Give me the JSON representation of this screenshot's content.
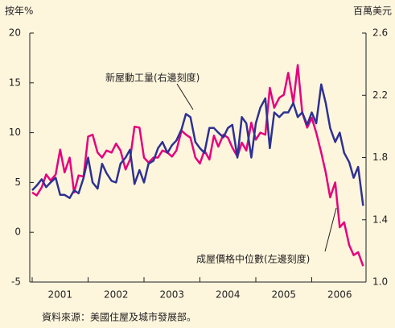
{
  "chart_data": {
    "type": "line",
    "y_axis_label": "按年%",
    "y2_axis_label": "百萬美元",
    "source": "資料來源：美國住屋及城市發展部。",
    "xlim": [
      2001,
      2007
    ],
    "xticks": [
      2001,
      2002,
      2003,
      2004,
      2005,
      2006,
      2007
    ],
    "x_year_labels": [
      {
        "value": 2001.5,
        "label": "2001"
      },
      {
        "value": 2002.5,
        "label": "2002"
      },
      {
        "value": 2003.5,
        "label": "2003"
      },
      {
        "value": 2004.5,
        "label": "2004"
      },
      {
        "value": 2005.5,
        "label": "2005"
      },
      {
        "value": 2006.5,
        "label": "2006"
      }
    ],
    "ylim": [
      -5,
      20
    ],
    "yticks": [
      -5,
      0,
      5,
      10,
      15,
      20
    ],
    "y2lim": [
      1.0,
      2.6
    ],
    "y2ticks": [
      {
        "value": 1.0,
        "label": "1.0"
      },
      1.4,
      1.8,
      2.2,
      2.6
    ],
    "x": [
      2001,
      2001.08,
      2001.17,
      2001.25,
      2001.33,
      2001.42,
      2001.5,
      2001.58,
      2001.67,
      2001.75,
      2001.83,
      2001.92,
      2002,
      2002.08,
      2002.17,
      2002.25,
      2002.33,
      2002.42,
      2002.5,
      2002.58,
      2002.67,
      2002.75,
      2002.83,
      2002.92,
      2003,
      2003.08,
      2003.17,
      2003.25,
      2003.33,
      2003.42,
      2003.5,
      2003.58,
      2003.67,
      2003.75,
      2003.83,
      2003.92,
      2004,
      2004.08,
      2004.17,
      2004.25,
      2004.33,
      2004.42,
      2004.5,
      2004.58,
      2004.67,
      2004.75,
      2004.83,
      2004.92,
      2005,
      2005.08,
      2005.17,
      2005.25,
      2005.33,
      2005.42,
      2005.5,
      2005.58,
      2005.67,
      2005.75,
      2005.83,
      2005.92,
      2006,
      2006.08,
      2006.17,
      2006.25,
      2006.33,
      2006.42,
      2006.5,
      2006.58,
      2006.67,
      2006.75,
      2006.83,
      2006.92
    ],
    "series": [
      {
        "name": "成屋價格中位數(左邊刻度)",
        "color": "#e6007e",
        "axis": "y",
        "values": [
          4.0,
          3.7,
          4.5,
          5.8,
          5.2,
          5.8,
          8.3,
          6.0,
          7.5,
          4.0,
          5.7,
          5.6,
          9.6,
          9.8,
          8.0,
          7.5,
          8.2,
          8.0,
          8.9,
          8.2,
          6.3,
          7.3,
          10.6,
          10.5,
          7.5,
          7.0,
          7.5,
          7.5,
          8.2,
          8.0,
          7.6,
          8.2,
          10.2,
          9.8,
          9.5,
          7.5,
          6.9,
          8.2,
          7.3,
          9.7,
          8.6,
          9.8,
          9.5,
          8.5,
          7.6,
          9.0,
          8.2,
          11.0,
          9.3,
          10.0,
          9.8,
          14.5,
          12.5,
          13.5,
          13.8,
          16.0,
          13.0,
          16.8,
          12.0,
          10.5,
          11.5,
          10.0,
          8.0,
          6.0,
          3.5,
          5.0,
          0.5,
          1.0,
          -1.3,
          -2.3,
          -2.0,
          -3.4
        ]
      },
      {
        "name": "新屋動工量(右邊刻度)",
        "color": "#2e3192",
        "axis": "y2",
        "values": [
          1.59,
          1.62,
          1.66,
          1.61,
          1.64,
          1.67,
          1.56,
          1.56,
          1.54,
          1.59,
          1.57,
          1.67,
          1.8,
          1.64,
          1.6,
          1.76,
          1.7,
          1.65,
          1.64,
          1.76,
          1.8,
          1.85,
          1.63,
          1.72,
          1.64,
          1.76,
          1.78,
          1.86,
          1.9,
          1.83,
          1.88,
          1.91,
          1.98,
          2.08,
          2.06,
          1.9,
          1.86,
          1.83,
          1.99,
          1.99,
          1.96,
          1.93,
          1.99,
          2.01,
          1.8,
          2.06,
          2.02,
          1.8,
          2.02,
          2.12,
          2.18,
          1.86,
          2.09,
          2.06,
          2.09,
          2.09,
          2.15,
          2.06,
          2.09,
          2.01,
          2.09,
          2.02,
          2.27,
          2.15,
          1.99,
          1.9,
          1.96,
          1.83,
          1.77,
          1.67,
          1.74,
          1.49
        ]
      }
    ]
  }
}
